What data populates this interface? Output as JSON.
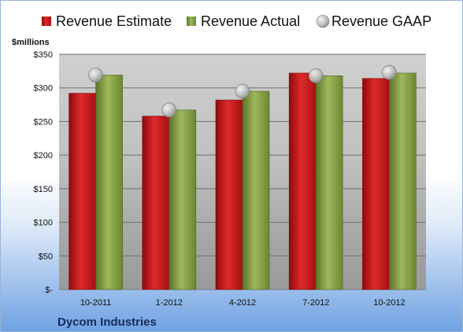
{
  "chart_data": {
    "type": "bar",
    "title": "",
    "company": "Dycom Industries",
    "unit_label": "$millions",
    "xlabel": "",
    "ylabel": "",
    "categories": [
      "10-2011",
      "1-2012",
      "4-2012",
      "7-2012",
      "10-2012"
    ],
    "series": [
      {
        "name": "Revenue Estimate",
        "kind": "bar",
        "color": "#c8141b",
        "values": [
          292,
          258,
          282,
          322,
          314
        ]
      },
      {
        "name": "Revenue Actual",
        "kind": "bar",
        "color": "#7f9a3f",
        "values": [
          319,
          267,
          295,
          318,
          322
        ]
      },
      {
        "name": "Revenue GAAP",
        "kind": "marker",
        "color": "#bdbdbd",
        "values": [
          319,
          267,
          295,
          318,
          323
        ]
      }
    ],
    "ylim": [
      0,
      350
    ],
    "yticks": [
      0,
      50,
      100,
      150,
      200,
      250,
      300,
      350
    ],
    "yticklabels": [
      "$-",
      "$50",
      "$100",
      "$150",
      "$200",
      "$250",
      "$300",
      "$350"
    ],
    "grid": true,
    "legend_position": "top"
  }
}
